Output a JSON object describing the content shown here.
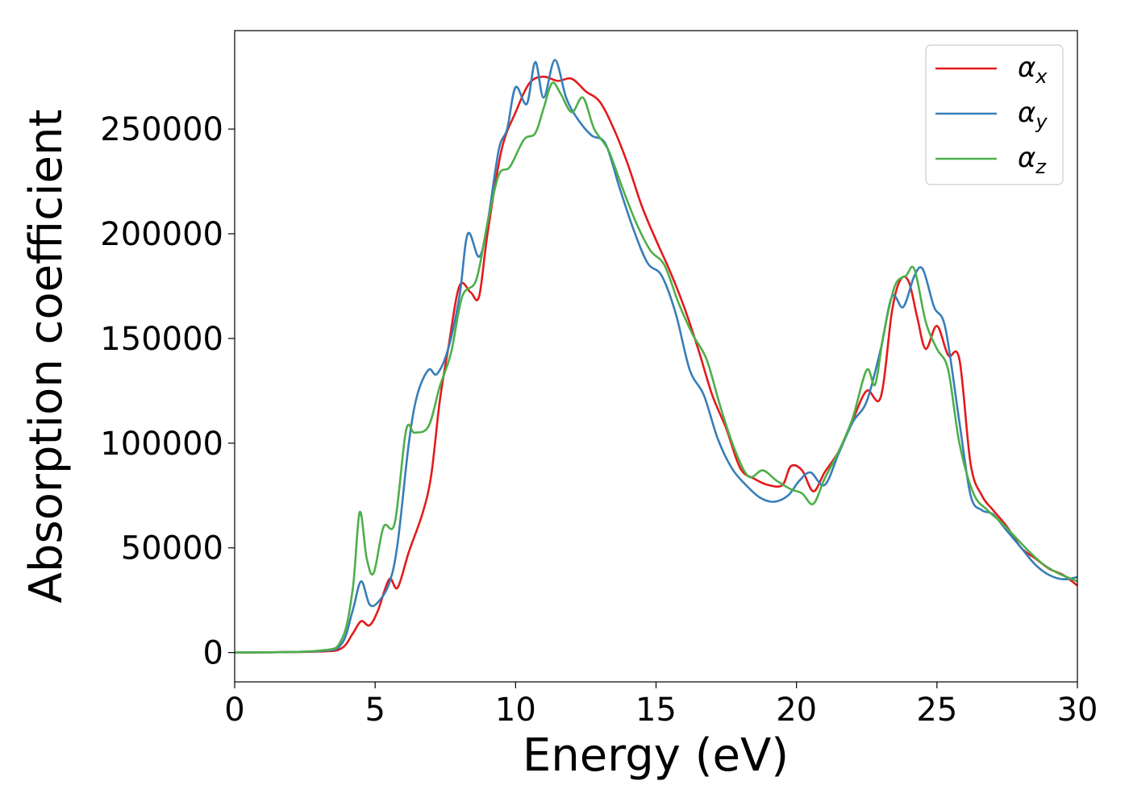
{
  "chart_data": {
    "type": "line",
    "xlabel": "Energy (eV)",
    "ylabel": "Absorption coefficient",
    "xlim": [
      0,
      30
    ],
    "ylim": [
      -14000,
      297000
    ],
    "xticks": [
      0,
      5,
      10,
      15,
      20,
      25,
      30
    ],
    "yticks": [
      0,
      50000,
      100000,
      150000,
      200000,
      250000
    ],
    "grid": false,
    "legend_position": "top-right",
    "series": [
      {
        "name": "α",
        "subscript": "x",
        "color": "#e41a1c",
        "x": [
          0,
          3,
          3.8,
          4.2,
          4.5,
          4.8,
          5.1,
          5.5,
          5.8,
          6.2,
          6.7,
          7.0,
          7.3,
          7.6,
          8.0,
          8.4,
          8.7,
          9.0,
          9.5,
          10.0,
          10.5,
          11.0,
          11.5,
          12.0,
          12.5,
          13.0,
          13.5,
          14.0,
          14.5,
          15.0,
          15.5,
          16.0,
          16.5,
          17.0,
          17.5,
          18.0,
          18.5,
          19.0,
          19.5,
          19.8,
          20.2,
          20.6,
          21.0,
          21.5,
          22.0,
          22.5,
          23.0,
          23.4,
          23.7,
          24.0,
          24.3,
          24.6,
          25.0,
          25.4,
          25.8,
          26.2,
          26.6,
          27.0,
          27.5,
          28.0,
          28.5,
          29.0,
          29.5,
          30.0
        ],
        "y": [
          0,
          500,
          2000,
          9000,
          15000,
          13000,
          20000,
          35000,
          31000,
          48000,
          67000,
          85000,
          120000,
          145000,
          175000,
          172000,
          170000,
          200000,
          240000,
          258000,
          272000,
          275000,
          273000,
          274000,
          268000,
          263000,
          250000,
          233000,
          213000,
          197000,
          182000,
          165000,
          145000,
          123000,
          107000,
          88000,
          83000,
          80000,
          80000,
          89000,
          87000,
          77000,
          86000,
          96000,
          111000,
          125000,
          122000,
          163000,
          178000,
          177000,
          160000,
          145000,
          156000,
          142000,
          140000,
          90000,
          75000,
          68000,
          60000,
          50000,
          45000,
          40000,
          37000,
          32000
        ]
      },
      {
        "name": "α",
        "subscript": "y",
        "color": "#377eb8",
        "x": [
          0,
          3,
          3.8,
          4.2,
          4.5,
          4.8,
          5.1,
          5.5,
          5.8,
          6.2,
          6.5,
          6.9,
          7.2,
          7.6,
          8.0,
          8.3,
          8.7,
          9.0,
          9.4,
          9.7,
          10.0,
          10.4,
          10.7,
          11.0,
          11.4,
          11.8,
          12.2,
          12.7,
          13.2,
          13.7,
          14.2,
          14.7,
          15.2,
          15.7,
          16.2,
          16.7,
          17.2,
          17.7,
          18.2,
          18.7,
          19.2,
          19.7,
          20.1,
          20.5,
          21.0,
          21.5,
          22.0,
          22.5,
          23.0,
          23.4,
          23.8,
          24.2,
          24.5,
          24.9,
          25.3,
          25.8,
          26.2,
          26.6,
          27.0,
          27.5,
          28.0,
          28.5,
          29.0,
          29.5,
          30.0
        ],
        "y": [
          0,
          700,
          4000,
          20000,
          34000,
          23000,
          24000,
          33000,
          52000,
          100000,
          123000,
          135000,
          133000,
          145000,
          170000,
          200000,
          189000,
          205000,
          240000,
          250000,
          270000,
          262000,
          282000,
          265000,
          283000,
          265000,
          255000,
          247000,
          243000,
          222000,
          202000,
          186000,
          180000,
          162000,
          135000,
          123000,
          102000,
          88000,
          80000,
          74000,
          72000,
          75000,
          82000,
          86000,
          80000,
          95000,
          110000,
          120000,
          145000,
          170000,
          165000,
          180000,
          183000,
          165000,
          155000,
          110000,
          75000,
          68000,
          66000,
          58000,
          50000,
          42000,
          37000,
          35000,
          36000
        ]
      },
      {
        "name": "α",
        "subscript": "z",
        "color": "#4daf4a",
        "x": [
          0,
          3,
          3.8,
          4.2,
          4.45,
          4.7,
          4.95,
          5.3,
          5.7,
          6.1,
          6.4,
          6.9,
          7.3,
          7.7,
          8.1,
          8.6,
          9.0,
          9.4,
          9.8,
          10.3,
          10.7,
          11.0,
          11.3,
          11.6,
          12.0,
          12.4,
          12.8,
          13.3,
          13.8,
          14.3,
          14.8,
          15.3,
          15.8,
          16.3,
          16.8,
          17.3,
          17.8,
          18.3,
          18.8,
          19.3,
          19.8,
          20.2,
          20.6,
          21.0,
          21.5,
          22.0,
          22.5,
          22.8,
          23.1,
          23.5,
          23.9,
          24.2,
          24.6,
          25.0,
          25.4,
          25.8,
          26.3,
          26.8,
          27.3,
          27.8,
          28.3,
          28.8,
          29.3,
          30.0
        ],
        "y": [
          0,
          900,
          6000,
          30000,
          67000,
          45000,
          38000,
          60000,
          62000,
          106000,
          105000,
          108000,
          127000,
          143000,
          170000,
          178000,
          205000,
          228000,
          232000,
          245000,
          248000,
          260000,
          272000,
          267000,
          258000,
          265000,
          250000,
          240000,
          222000,
          205000,
          192000,
          185000,
          167000,
          152000,
          140000,
          117000,
          97000,
          84000,
          87000,
          82000,
          78000,
          76000,
          71000,
          83000,
          96000,
          112000,
          135000,
          128000,
          152000,
          175000,
          180000,
          183000,
          158000,
          145000,
          135000,
          100000,
          76000,
          68000,
          62000,
          55000,
          48000,
          42000,
          38000,
          34000
        ]
      }
    ]
  }
}
